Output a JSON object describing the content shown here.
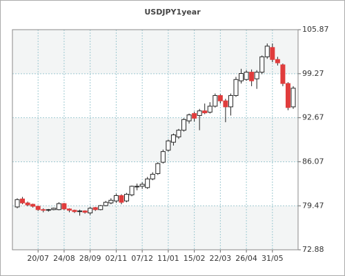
{
  "chart_data": {
    "type": "candlestick",
    "title": "USDJPY1year",
    "categories": [
      null,
      null,
      null,
      null,
      "20/07",
      null,
      null,
      null,
      null,
      "24/08",
      null,
      null,
      null,
      null,
      "28/09",
      null,
      null,
      null,
      null,
      "02/11",
      null,
      null,
      null,
      null,
      "07/12",
      null,
      null,
      null,
      null,
      "11/01",
      null,
      null,
      null,
      null,
      "15/02",
      null,
      null,
      null,
      null,
      "22/03",
      null,
      null,
      null,
      null,
      "26/04",
      null,
      null,
      null,
      null,
      "31/05",
      null,
      null,
      null,
      null
    ],
    "open": [
      79.3,
      80.5,
      79.9,
      79.7,
      79.4,
      78.9,
      78.8,
      78.9,
      78.9,
      79.8,
      79.0,
      78.8,
      78.6,
      78.7,
      78.4,
      79.2,
      78.9,
      79.5,
      79.9,
      80.2,
      81.0,
      80.2,
      81.1,
      82.3,
      82.4,
      82.2,
      83.5,
      84.3,
      86.0,
      87.8,
      89.0,
      89.8,
      90.8,
      92.2,
      93.3,
      93.0,
      93.7,
      93.5,
      94.4,
      96.0,
      95.2,
      94.3,
      96.0,
      98.2,
      98.4,
      99.5,
      98.5,
      99.5,
      101.8,
      103.2,
      101.4,
      100.6,
      97.8,
      94.3
    ],
    "high": [
      80.6,
      80.8,
      80.1,
      79.8,
      79.5,
      79.1,
      79.0,
      79.2,
      80.0,
      79.9,
      79.1,
      78.9,
      78.9,
      78.8,
      79.3,
      79.3,
      79.6,
      80.2,
      80.6,
      81.3,
      81.2,
      81.4,
      82.5,
      82.8,
      83.0,
      83.8,
      84.5,
      86.0,
      87.9,
      89.4,
      90.3,
      91.0,
      92.6,
      93.3,
      93.6,
      94.0,
      94.8,
      95.0,
      96.3,
      96.2,
      95.5,
      96.3,
      98.8,
      100.0,
      99.8,
      99.9,
      99.8,
      102.0,
      103.8,
      103.8,
      101.8,
      100.8,
      98.0,
      97.4
    ],
    "low": [
      79.1,
      79.7,
      79.4,
      79.2,
      78.7,
      78.5,
      78.6,
      78.8,
      78.8,
      78.8,
      78.5,
      78.4,
      78.0,
      78.3,
      78.1,
      78.7,
      78.8,
      79.4,
      79.7,
      79.9,
      79.7,
      80.0,
      80.9,
      81.8,
      82.0,
      82.0,
      83.3,
      84.1,
      85.8,
      87.6,
      88.5,
      89.5,
      90.6,
      91.8,
      92.1,
      90.8,
      93.2,
      93.3,
      94.2,
      94.8,
      92.0,
      93.0,
      95.8,
      97.8,
      98.2,
      97.4,
      97.0,
      99.2,
      101.5,
      101.0,
      100.5,
      97.4,
      93.8,
      94.0
    ],
    "close": [
      80.4,
      79.9,
      79.6,
      79.4,
      78.9,
      78.8,
      78.9,
      79.1,
      79.8,
      79.0,
      78.8,
      78.6,
      78.7,
      78.5,
      79.1,
      78.9,
      79.5,
      80.0,
      80.3,
      81.0,
      80.0,
      81.2,
      82.4,
      82.4,
      82.7,
      83.5,
      84.2,
      85.8,
      87.6,
      89.2,
      90.1,
      90.8,
      92.4,
      93.1,
      92.6,
      93.7,
      93.4,
      94.4,
      96.0,
      95.2,
      94.3,
      96.0,
      98.4,
      99.3,
      99.5,
      98.2,
      99.5,
      101.8,
      103.4,
      101.4,
      100.9,
      97.8,
      94.2,
      97.1
    ],
    "up_color": "#ffffff",
    "down_color": "#e03c3c",
    "ylim": [
      72.88,
      105.87
    ],
    "yticks": [
      72.88,
      79.47,
      86.07,
      92.67,
      99.27,
      105.87
    ],
    "grid": true
  }
}
